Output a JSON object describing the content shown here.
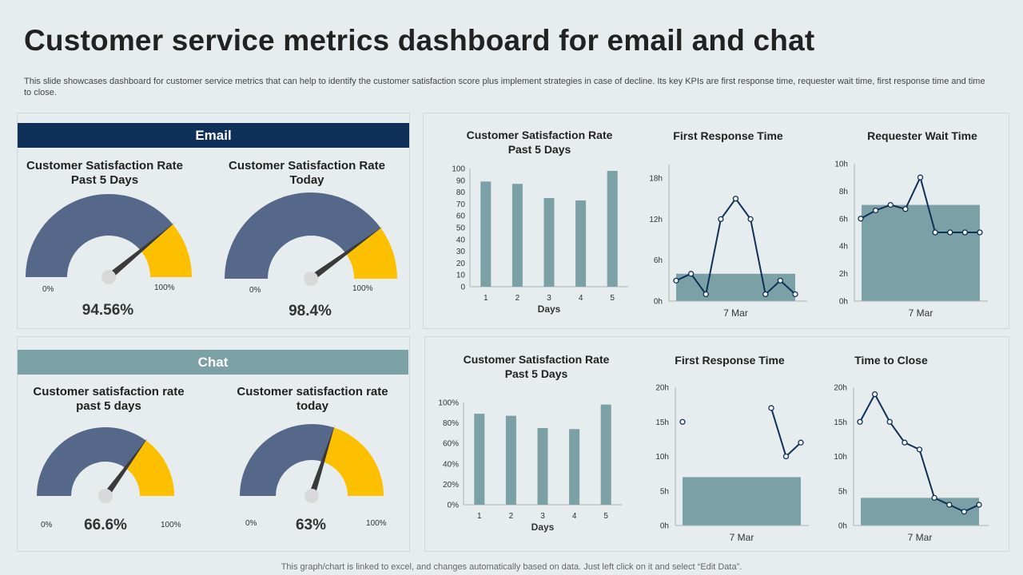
{
  "title": "Customer service metrics dashboard for email and chat",
  "description": "This slide showcases dashboard for customer service metrics that can help to identify the customer satisfaction score plus implement strategies in case of decline. Its key KPIs are first response time, requester wait time, first response time and time to close.",
  "footer": "This graph/chart is linked to excel,  and changes automatically based on data. Just left click on it and select “Edit Data”.",
  "colors": {
    "dark_navy": "#0e3059",
    "teal": "#7ba0a5",
    "gauge_slate": "#56688a",
    "gauge_yellow": "#fcc000",
    "line": "#0e3059"
  },
  "email": {
    "label": "Email",
    "gauges": [
      {
        "title": "Customer Satisfaction Rate Past 5 Days",
        "value_text": "94.56%",
        "min_label": "0%",
        "max_label": "100%",
        "fill": 0.78
      },
      {
        "title": "Customer Satisfaction Rate Today",
        "value_text": "98.4%",
        "min_label": "0%",
        "max_label": "100%",
        "fill": 0.8
      }
    ]
  },
  "chat": {
    "label": "Chat",
    "gauges": [
      {
        "title": "Customer satisfaction rate past 5 days",
        "value_text": "66.6%",
        "min_label": "0%",
        "max_label": "100%",
        "fill": 0.7
      },
      {
        "title": "Customer satisfaction rate today",
        "value_text": "63%",
        "min_label": "0%",
        "max_label": "100%",
        "fill": 0.6
      }
    ]
  },
  "chart_data": [
    {
      "id": "email_csat",
      "type": "bar",
      "title": "Customer Satisfaction Rate Past 5 Days",
      "xlabel": "Days",
      "ylabel": "",
      "categories": [
        "1",
        "2",
        "3",
        "4",
        "5"
      ],
      "values": [
        89,
        87,
        75,
        73,
        98
      ],
      "ylim": [
        0,
        100
      ],
      "yticks": [
        "0",
        "10",
        "20",
        "30",
        "40",
        "50",
        "60",
        "70",
        "80",
        "90",
        "100"
      ],
      "grid": false
    },
    {
      "id": "email_frt",
      "type": "line",
      "title": "First Response Time",
      "xlabel": "7 Mar",
      "ylabel": "",
      "values": [
        3,
        4,
        1,
        12,
        15,
        12,
        1,
        3,
        1
      ],
      "band_value": 4,
      "ylim": [
        0,
        20
      ],
      "yticks": [
        {
          "v": 0,
          "t": "0h"
        },
        {
          "v": 6,
          "t": "6h"
        },
        {
          "v": 12,
          "t": "12h"
        },
        {
          "v": 18,
          "t": "18h"
        }
      ],
      "grid": false
    },
    {
      "id": "email_rwt",
      "type": "line",
      "title": "Requester Wait Time",
      "xlabel": "7 Mar",
      "ylabel": "",
      "values": [
        6,
        6.6,
        7,
        6.7,
        9,
        5,
        5,
        5,
        5
      ],
      "band_value": 7,
      "ylim": [
        0,
        10
      ],
      "yticks": [
        {
          "v": 0,
          "t": "0h"
        },
        {
          "v": 2,
          "t": "2h"
        },
        {
          "v": 4,
          "t": "4h"
        },
        {
          "v": 6,
          "t": "6h"
        },
        {
          "v": 8,
          "t": "8h"
        },
        {
          "v": 10,
          "t": "10h"
        }
      ],
      "grid": false
    },
    {
      "id": "chat_csat",
      "type": "bar",
      "title": "Customer Satisfaction Rate Past 5 Days",
      "xlabel": "Days",
      "ylabel": "",
      "categories": [
        "1",
        "2",
        "3",
        "4",
        "5"
      ],
      "values": [
        89,
        87,
        75,
        74,
        98
      ],
      "ylim": [
        0,
        100
      ],
      "yticks": [
        "0%",
        "20%",
        "40%",
        "60%",
        "80%",
        "100%"
      ],
      "grid": false
    },
    {
      "id": "chat_frt",
      "type": "line",
      "title": "First Response Time",
      "xlabel": "7 Mar",
      "ylabel": "",
      "values": [
        15,
        null,
        null,
        null,
        null,
        null,
        17,
        10,
        12
      ],
      "band_value": 7,
      "ylim": [
        0,
        20
      ],
      "yticks": [
        {
          "v": 0,
          "t": "0h"
        },
        {
          "v": 5,
          "t": "5h"
        },
        {
          "v": 10,
          "t": "10h"
        },
        {
          "v": 15,
          "t": "15h"
        },
        {
          "v": 20,
          "t": "20h"
        }
      ],
      "grid": false
    },
    {
      "id": "chat_ttc",
      "type": "line",
      "title": "Time to Close",
      "xlabel": "7 Mar",
      "ylabel": "",
      "values": [
        15,
        19,
        15,
        12,
        11,
        4,
        3,
        2,
        3
      ],
      "band_value": 4,
      "ylim": [
        0,
        20
      ],
      "yticks": [
        {
          "v": 0,
          "t": "0h"
        },
        {
          "v": 5,
          "t": "5h"
        },
        {
          "v": 10,
          "t": "10h"
        },
        {
          "v": 15,
          "t": "15h"
        },
        {
          "v": 20,
          "t": "20h"
        }
      ],
      "grid": false
    }
  ]
}
